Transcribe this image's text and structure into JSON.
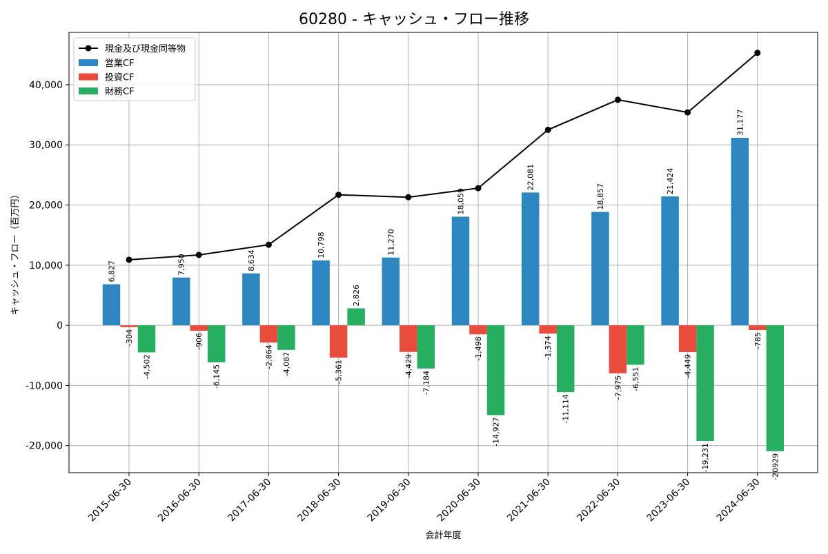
{
  "chart_data": {
    "type": "bar",
    "title": "60280 - キャッシュ・フロー推移",
    "xlabel": "会計年度",
    "ylabel": "キャッシュ・フロー（百万円）",
    "ylim": [
      -24500,
      48700
    ],
    "yticks": [
      -20000,
      -10000,
      0,
      10000,
      20000,
      30000,
      40000
    ],
    "ytick_labels": [
      "-20,000",
      "-10,000",
      "0",
      "10,000",
      "20,000",
      "30,000",
      "40,000"
    ],
    "grid": true,
    "legend_position": "top-left",
    "categories": [
      "2015-06-30",
      "2016-06-30",
      "2017-06-30",
      "2018-06-30",
      "2019-06-30",
      "2020-06-30",
      "2021-06-30",
      "2022-06-30",
      "2023-06-30",
      "2024-06-30"
    ],
    "line_series": {
      "name": "現金及び現金同等物",
      "color": "#000000",
      "values": [
        10900,
        11700,
        13400,
        21700,
        21300,
        22800,
        32500,
        37500,
        35400,
        45300
      ]
    },
    "series": [
      {
        "name": "営業CF",
        "color": "#2e86c1",
        "values": [
          6827,
          7950,
          8634,
          10798,
          11270,
          18059,
          22081,
          18857,
          21424,
          31177
        ],
        "labels": [
          "6,827",
          "7,950",
          "8,634",
          "10,798",
          "11,270",
          "18,059",
          "22,081",
          "18,857",
          "21,424",
          "31,177"
        ]
      },
      {
        "name": "投資CF",
        "color": "#e74c3c",
        "values": [
          -304,
          -906,
          -2864,
          -5361,
          -4429,
          -1498,
          -1374,
          -7975,
          -4449,
          -785
        ],
        "labels": [
          "-304",
          "-906",
          "-2,864",
          "-5,361",
          "-4,429",
          "-1,498",
          "-1,374",
          "-7,975",
          "-4,449",
          "-785"
        ]
      },
      {
        "name": "財務CF",
        "color": "#27ae60",
        "values": [
          -4502,
          -6145,
          -4087,
          2826,
          -7184,
          -14927,
          -11114,
          -6551,
          -19231,
          -20929
        ],
        "labels": [
          "-4,502",
          "-6,145",
          "-4,087",
          "2,826",
          "-7,184",
          "-14,927",
          "-11,114",
          "-6,551",
          "-19,231",
          "-20929"
        ]
      }
    ]
  }
}
